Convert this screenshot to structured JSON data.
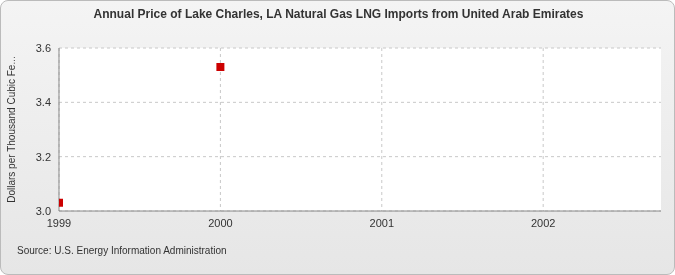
{
  "chart_data": {
    "type": "scatter",
    "title": "Annual Price of Lake Charles, LA Natural Gas LNG Imports from United Arab Emirates",
    "y_label": "Dollars per Thousand Cubic Fe...",
    "source": "Source: U.S. Energy Information Administration",
    "x": [
      1999,
      2000
    ],
    "values": [
      3.03,
      3.53
    ],
    "color": "#cc0000",
    "marker": "square",
    "xlim": [
      1999,
      2002.73
    ],
    "xticks": [
      1999,
      2000,
      2001,
      2002
    ],
    "ylim": [
      3.0,
      3.6
    ],
    "yticks": [
      {
        "value": 3.0,
        "label": "3.0"
      },
      3.2,
      3.4,
      3.6
    ],
    "grid": true
  }
}
